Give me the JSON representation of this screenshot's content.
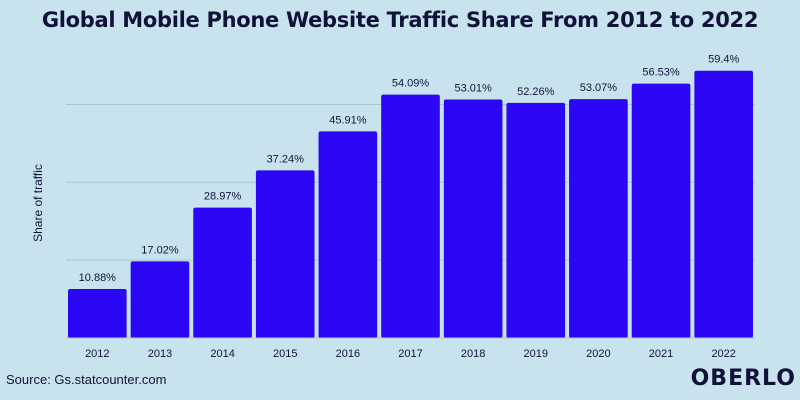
{
  "chart_data": {
    "type": "bar",
    "title": "Global Mobile Phone Website Traffic Share From 2012 to 2022",
    "xlabel": "",
    "ylabel": "Share of traffic",
    "categories": [
      "2012",
      "2013",
      "2014",
      "2015",
      "2016",
      "2017",
      "2018",
      "2019",
      "2020",
      "2021",
      "2022"
    ],
    "values": [
      10.88,
      17.02,
      28.97,
      37.24,
      45.91,
      54.09,
      53.01,
      52.26,
      53.07,
      56.53,
      59.4
    ],
    "data_labels": [
      "10.88%",
      "17.02%",
      "28.97%",
      "37.24%",
      "45.91%",
      "54.09%",
      "53.01%",
      "52.26%",
      "53.07%",
      "56.53%",
      "59.4%"
    ],
    "ylim": [
      0,
      60
    ],
    "grid": true,
    "legend": "none",
    "bar_color": "#2b07f5"
  },
  "source": "Source: Gs.statcounter.com",
  "brand": "OBERLO"
}
